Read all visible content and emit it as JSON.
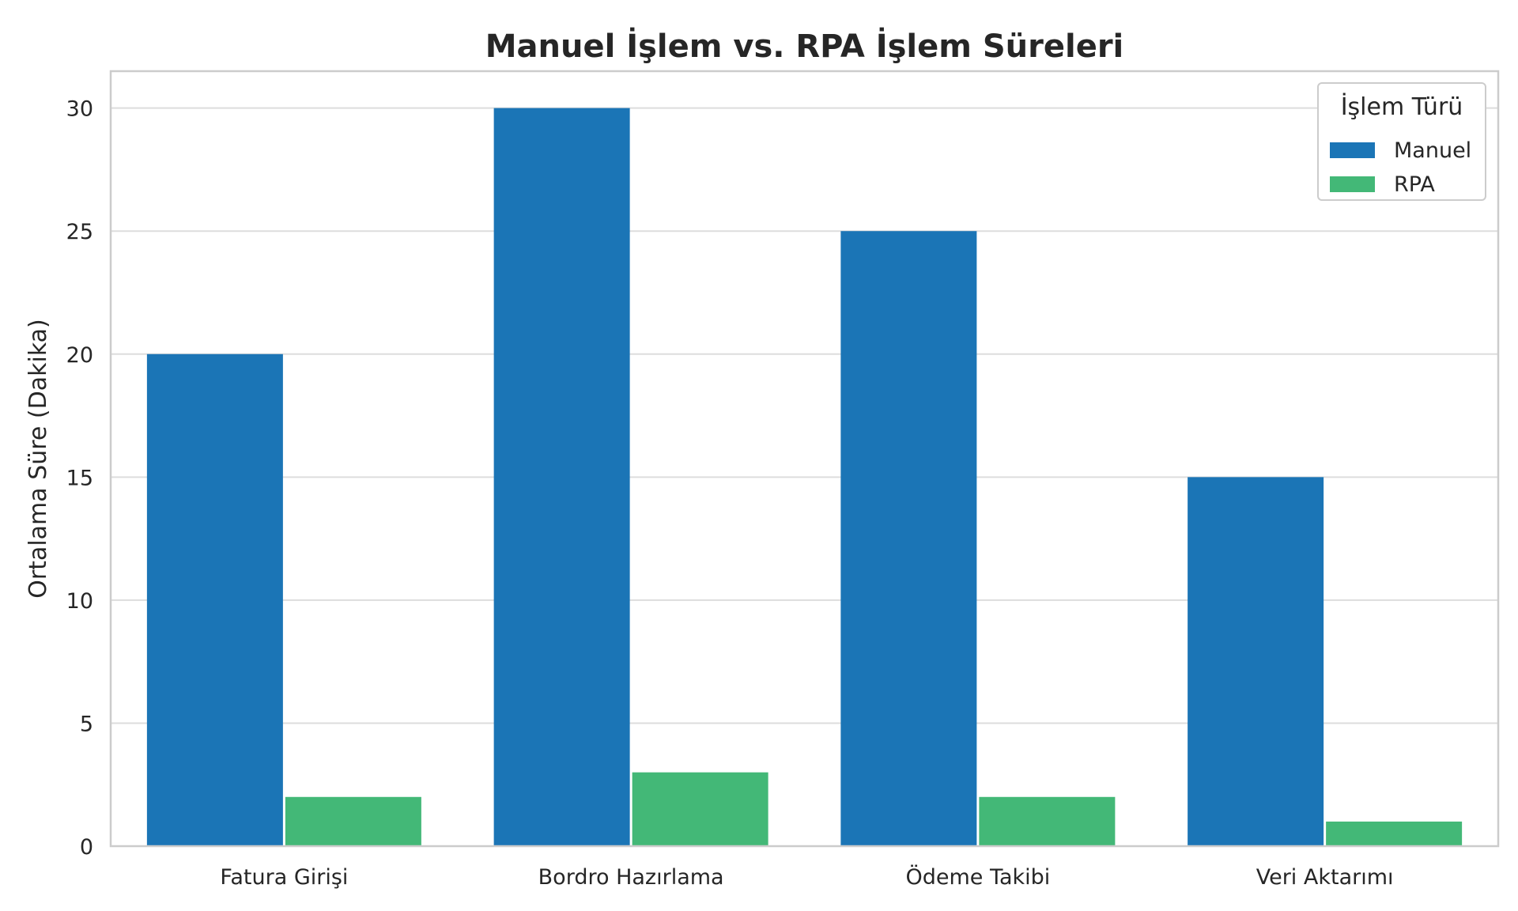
{
  "chart_data": {
    "type": "bar",
    "title": "Manuel İşlem vs. RPA İşlem Süreleri",
    "xlabel": "",
    "ylabel": "Ortalama Süre (Dakika)",
    "categories": [
      "Fatura Girişi",
      "Bordro Hazırlama",
      "Ödeme Takibi",
      "Veri Aktarımı"
    ],
    "series": [
      {
        "name": "Manuel",
        "values": [
          20,
          30,
          25,
          15
        ],
        "color": "#1b75b6"
      },
      {
        "name": "RPA",
        "values": [
          2,
          3,
          2,
          1
        ],
        "color": "#43b877"
      }
    ],
    "ylim": [
      0,
      31.5
    ],
    "yticks": [
      0,
      5,
      10,
      15,
      20,
      25,
      30
    ],
    "grid": true,
    "legend": {
      "title": "İşlem Türü",
      "placement": "top-right"
    }
  }
}
